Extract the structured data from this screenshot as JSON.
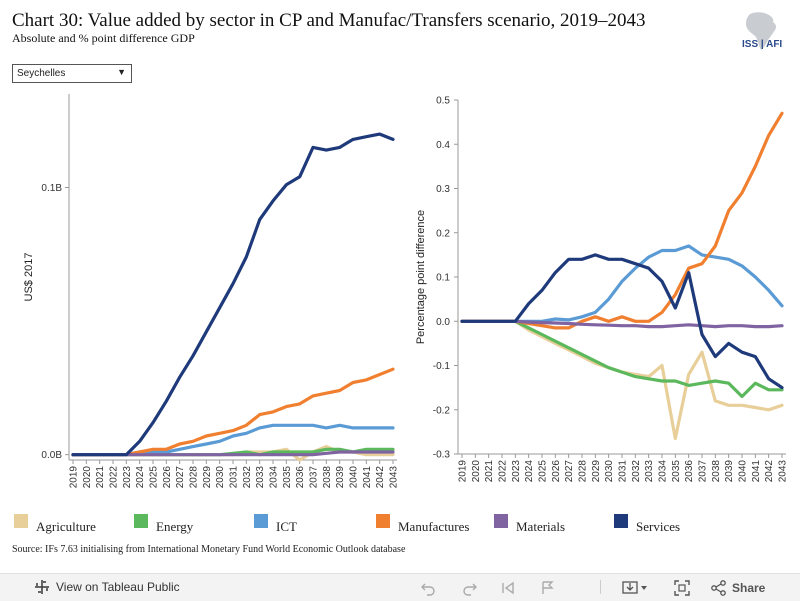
{
  "header": {
    "title": "Chart 30: Value added by sector in CP and Manufac/Transfers scenario, 2019–2043",
    "subtitle": "Absolute and % point difference GDP",
    "logo_text": "ISS | AFI"
  },
  "country_select": {
    "value": "Seychelles"
  },
  "source_note": "Source: IFs 7.63 initialising from International Monetary Fund World Economic Outlook database",
  "toolbar": {
    "view_label": "View on Tableau Public",
    "share_label": "Share"
  },
  "chart_data": [
    {
      "type": "line",
      "title": "",
      "ylabel": "US$ 2017",
      "y_tick_labels": [
        "0.0B",
        "0.1B"
      ],
      "y_ticks": [
        0,
        0.1
      ],
      "ylim": [
        -0.002,
        0.135
      ],
      "grid": false,
      "x": [
        "2019",
        "2020",
        "2021",
        "2022",
        "2023",
        "2024",
        "2025",
        "2026",
        "2027",
        "2028",
        "2029",
        "2030",
        "2031",
        "2032",
        "2033",
        "2034",
        "2035",
        "2036",
        "2037",
        "2038",
        "2039",
        "2040",
        "2041",
        "2042",
        "2043"
      ],
      "series": [
        {
          "name": "Agriculture",
          "color": "#e8cf9a",
          "values": [
            0,
            0,
            0,
            0,
            0,
            0,
            0,
            0,
            0,
            0,
            0,
            0,
            0,
            0.001,
            0.001,
            0.001,
            0.002,
            -0.002,
            0.001,
            0.003,
            0.001,
            0.001,
            0,
            0,
            0
          ]
        },
        {
          "name": "Energy",
          "color": "#5cb85c",
          "values": [
            0,
            0,
            0,
            0,
            0,
            0,
            0,
            0,
            0,
            0,
            0,
            0,
            0.0005,
            0.001,
            0,
            0.001,
            0.001,
            0.001,
            0.001,
            0.002,
            0.002,
            0.001,
            0.002,
            0.002,
            0.002
          ]
        },
        {
          "name": "ICT",
          "color": "#5b9bd5",
          "values": [
            0,
            0,
            0,
            0,
            0,
            0.001,
            0.001,
            0.001,
            0.002,
            0.003,
            0.004,
            0.005,
            0.007,
            0.008,
            0.01,
            0.011,
            0.011,
            0.011,
            0.011,
            0.01,
            0.011,
            0.01,
            0.01,
            0.01,
            0.01
          ]
        },
        {
          "name": "Manufactures",
          "color": "#f08030",
          "values": [
            0,
            0,
            0,
            0,
            0,
            0.001,
            0.002,
            0.002,
            0.004,
            0.005,
            0.007,
            0.008,
            0.009,
            0.011,
            0.015,
            0.016,
            0.018,
            0.019,
            0.022,
            0.023,
            0.024,
            0.027,
            0.028,
            0.03,
            0.032
          ]
        },
        {
          "name": "Materials",
          "color": "#8064a2",
          "values": [
            0,
            0,
            0,
            0,
            0,
            0,
            0,
            0,
            0,
            0,
            0,
            0,
            0,
            0,
            0,
            0,
            0,
            0,
            0,
            0.0005,
            0.001,
            0.001,
            0.001,
            0.001,
            0.001
          ]
        },
        {
          "name": "Services",
          "color": "#1f3a7a",
          "values": [
            0,
            0,
            0,
            0,
            0,
            0.005,
            0.012,
            0.02,
            0.029,
            0.037,
            0.046,
            0.055,
            0.064,
            0.074,
            0.088,
            0.095,
            0.101,
            0.104,
            0.115,
            0.114,
            0.115,
            0.118,
            0.119,
            0.12,
            0.118
          ]
        }
      ]
    },
    {
      "type": "line",
      "title": "",
      "ylabel": "Percentage point difference",
      "y_ticks": [
        -0.3,
        -0.2,
        -0.1,
        0.0,
        0.1,
        0.2,
        0.3,
        0.4,
        0.5
      ],
      "y_tick_labels": [
        "-0.3",
        "-0.2",
        "-0.1",
        "0.0",
        "0.1",
        "0.2",
        "0.3",
        "0.4",
        "0.5"
      ],
      "ylim": [
        -0.3,
        0.5
      ],
      "grid": false,
      "x": [
        "2019",
        "2020",
        "2021",
        "2022",
        "2023",
        "2024",
        "2025",
        "2026",
        "2027",
        "2028",
        "2029",
        "2030",
        "2031",
        "2032",
        "2033",
        "2034",
        "2035",
        "2036",
        "2037",
        "2038",
        "2039",
        "2040",
        "2041",
        "2042",
        "2043"
      ],
      "series": [
        {
          "name": "Agriculture",
          "color": "#e8cf9a",
          "values": [
            0,
            0,
            0,
            0,
            0,
            -0.02,
            -0.035,
            -0.05,
            -0.065,
            -0.08,
            -0.095,
            -0.105,
            -0.115,
            -0.12,
            -0.125,
            -0.1,
            -0.265,
            -0.12,
            -0.07,
            -0.18,
            -0.19,
            -0.19,
            -0.195,
            -0.2,
            -0.19
          ]
        },
        {
          "name": "Energy",
          "color": "#5cb85c",
          "values": [
            0,
            0,
            0,
            0,
            0,
            -0.015,
            -0.03,
            -0.045,
            -0.06,
            -0.075,
            -0.09,
            -0.105,
            -0.115,
            -0.125,
            -0.13,
            -0.135,
            -0.135,
            -0.145,
            -0.14,
            -0.135,
            -0.14,
            -0.17,
            -0.14,
            -0.155,
            -0.155
          ]
        },
        {
          "name": "ICT",
          "color": "#5b9bd5",
          "values": [
            0,
            0,
            0,
            0,
            0,
            0,
            0,
            0.005,
            0.003,
            0.01,
            0.02,
            0.05,
            0.09,
            0.12,
            0.145,
            0.16,
            0.16,
            0.17,
            0.15,
            0.145,
            0.14,
            0.125,
            0.1,
            0.07,
            0.035
          ]
        },
        {
          "name": "Manufactures",
          "color": "#f08030",
          "values": [
            0,
            0,
            0,
            0,
            0,
            -0.005,
            -0.01,
            -0.015,
            -0.015,
            0,
            0.01,
            0,
            0.01,
            0,
            0,
            0.02,
            0.06,
            0.12,
            0.13,
            0.17,
            0.25,
            0.29,
            0.35,
            0.42,
            0.47
          ]
        },
        {
          "name": "Materials",
          "color": "#8064a2",
          "values": [
            0,
            0,
            0,
            0,
            0,
            -0.002,
            -0.003,
            -0.004,
            -0.005,
            -0.007,
            -0.008,
            -0.009,
            -0.01,
            -0.01,
            -0.012,
            -0.012,
            -0.01,
            -0.008,
            -0.01,
            -0.012,
            -0.01,
            -0.01,
            -0.012,
            -0.012,
            -0.01
          ]
        },
        {
          "name": "Services",
          "color": "#1f3a7a",
          "values": [
            0,
            0,
            0,
            0,
            0,
            0.04,
            0.07,
            0.11,
            0.14,
            0.14,
            0.15,
            0.14,
            0.14,
            0.13,
            0.12,
            0.09,
            0.03,
            0.11,
            -0.03,
            -0.08,
            -0.05,
            -0.07,
            -0.08,
            -0.13,
            -0.15
          ]
        }
      ]
    }
  ],
  "legend": [
    {
      "label": "Agriculture",
      "color": "#e8cf9a"
    },
    {
      "label": "Energy",
      "color": "#5cb85c"
    },
    {
      "label": "ICT",
      "color": "#5b9bd5"
    },
    {
      "label": "Manufactures",
      "color": "#f08030"
    },
    {
      "label": "Materials",
      "color": "#8064a2"
    },
    {
      "label": "Services",
      "color": "#1f3a7a"
    }
  ]
}
